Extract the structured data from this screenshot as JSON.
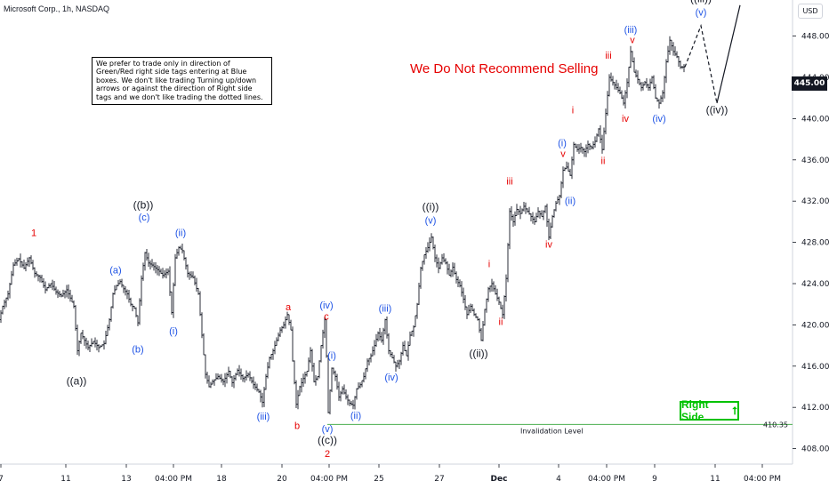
{
  "header": {
    "title": "Microsoft Corp., 1h, NASDAQ",
    "currency": "USD"
  },
  "note_text": "We prefer to trade only in direction of Green/Red right side tags entering at Blue boxes. We don't like trading Turning up/down arrows or against the direction of Right side tags and we don't like trading the dotted lines.",
  "warning_text": "We Do Not Recommend Selling",
  "right_side_label": "Right Side",
  "right_side_arrow": "⭡",
  "invalidation": {
    "label": "Invalidation Level",
    "value": "410.35"
  },
  "colors": {
    "red": "#e60000",
    "blue": "#1e53e5",
    "black": "#131722",
    "green": "#00c200",
    "invalidation": "#4caf50"
  },
  "chart_data": {
    "type": "ohlc",
    "current_price": "445.00",
    "ylim": [
      406.5,
      451.5
    ],
    "y_ticks": [
      408,
      412,
      416,
      420,
      424,
      428,
      432,
      436,
      440,
      444,
      448
    ],
    "y_tick_labels": [
      "408.00",
      "412.00",
      "416.00",
      "420.00",
      "424.00",
      "428.00",
      "432.00",
      "436.00",
      "440.00",
      "444.00",
      "448.00"
    ],
    "x_tick_labels": [
      "7",
      "11",
      "13",
      "04:00 PM",
      "18",
      "20",
      "04:00 PM",
      "25",
      "27",
      "Dec",
      "4",
      "04:00 PM",
      "9",
      "11",
      "04:00 PM"
    ],
    "price_path": [
      [
        0,
        420.5
      ],
      [
        4,
        421.8
      ],
      [
        10,
        423.0
      ],
      [
        16,
        425.8
      ],
      [
        22,
        426.4
      ],
      [
        28,
        425.5
      ],
      [
        34,
        426.5
      ],
      [
        40,
        425.0
      ],
      [
        46,
        424.6
      ],
      [
        52,
        423.4
      ],
      [
        58,
        424.0
      ],
      [
        64,
        423.2
      ],
      [
        70,
        422.8
      ],
      [
        76,
        423.4
      ],
      [
        80,
        422.6
      ],
      [
        84,
        421.8
      ],
      [
        88,
        417.5
      ],
      [
        92,
        419.2
      ],
      [
        96,
        418.5
      ],
      [
        100,
        417.8
      ],
      [
        106,
        418.4
      ],
      [
        112,
        417.8
      ],
      [
        118,
        418.2
      ],
      [
        124,
        420.5
      ],
      [
        128,
        423.0
      ],
      [
        132,
        423.8
      ],
      [
        136,
        424.2
      ],
      [
        140,
        423.5
      ],
      [
        144,
        423.0
      ],
      [
        148,
        422.0
      ],
      [
        152,
        421.6
      ],
      [
        156,
        420.2
      ],
      [
        160,
        424.5
      ],
      [
        164,
        427.0
      ],
      [
        168,
        426.0
      ],
      [
        172,
        425.8
      ],
      [
        176,
        425.5
      ],
      [
        180,
        425.2
      ],
      [
        184,
        424.8
      ],
      [
        190,
        425.2
      ],
      [
        194,
        421.2
      ],
      [
        198,
        426.5
      ],
      [
        202,
        427.5
      ],
      [
        206,
        427.2
      ],
      [
        212,
        425.0
      ],
      [
        218,
        424.6
      ],
      [
        224,
        423.0
      ],
      [
        228,
        419.0
      ],
      [
        232,
        415.2
      ],
      [
        236,
        414.0
      ],
      [
        240,
        414.5
      ],
      [
        246,
        415.0
      ],
      [
        252,
        414.5
      ],
      [
        258,
        415.5
      ],
      [
        262,
        414.4
      ],
      [
        268,
        415.6
      ],
      [
        274,
        414.8
      ],
      [
        280,
        415.2
      ],
      [
        286,
        414.2
      ],
      [
        292,
        413.5
      ],
      [
        296,
        412.5
      ],
      [
        300,
        415.0
      ],
      [
        304,
        416.8
      ],
      [
        308,
        417.5
      ],
      [
        312,
        418.5
      ],
      [
        316,
        419.5
      ],
      [
        320,
        420.0
      ],
      [
        324,
        421.0
      ],
      [
        328,
        419.5
      ],
      [
        330,
        416.5
      ],
      [
        334,
        412.3
      ],
      [
        338,
        414.0
      ],
      [
        342,
        414.8
      ],
      [
        346,
        415.5
      ],
      [
        350,
        417.5
      ],
      [
        354,
        414.5
      ],
      [
        358,
        415.0
      ],
      [
        362,
        418.0
      ],
      [
        366,
        420.5
      ],
      [
        368,
        417.0
      ],
      [
        370,
        411.5
      ],
      [
        374,
        415.8
      ],
      [
        378,
        415.0
      ],
      [
        382,
        413.0
      ],
      [
        386,
        413.8
      ],
      [
        390,
        413.0
      ],
      [
        394,
        412.4
      ],
      [
        398,
        412.2
      ],
      [
        402,
        413.8
      ],
      [
        406,
        414.2
      ],
      [
        410,
        415.0
      ],
      [
        414,
        416.5
      ],
      [
        418,
        417.0
      ],
      [
        422,
        418.0
      ],
      [
        426,
        419.2
      ],
      [
        430,
        418.5
      ],
      [
        434,
        420.5
      ],
      [
        438,
        417.5
      ],
      [
        442,
        416.8
      ],
      [
        446,
        416.0
      ],
      [
        450,
        416.5
      ],
      [
        454,
        418.0
      ],
      [
        458,
        417.0
      ],
      [
        462,
        419.0
      ],
      [
        466,
        419.8
      ],
      [
        470,
        422.0
      ],
      [
        474,
        425.5
      ],
      [
        478,
        426.8
      ],
      [
        482,
        427.5
      ],
      [
        486,
        428.5
      ],
      [
        490,
        426.5
      ],
      [
        494,
        425.5
      ],
      [
        498,
        426.5
      ],
      [
        502,
        426.0
      ],
      [
        506,
        424.8
      ],
      [
        510,
        425.6
      ],
      [
        514,
        424.4
      ],
      [
        518,
        423.8
      ],
      [
        522,
        422.5
      ],
      [
        526,
        421.0
      ],
      [
        530,
        421.8
      ],
      [
        534,
        421.0
      ],
      [
        538,
        420.5
      ],
      [
        542,
        418.5
      ],
      [
        546,
        421.5
      ],
      [
        550,
        423.5
      ],
      [
        554,
        424.0
      ],
      [
        558,
        423.0
      ],
      [
        562,
        422.2
      ],
      [
        566,
        421.0
      ],
      [
        570,
        424.5
      ],
      [
        574,
        431.0
      ],
      [
        578,
        430.0
      ],
      [
        582,
        431.2
      ],
      [
        586,
        430.8
      ],
      [
        590,
        431.5
      ],
      [
        594,
        431.0
      ],
      [
        598,
        430.5
      ],
      [
        602,
        430.0
      ],
      [
        606,
        431.0
      ],
      [
        610,
        430.5
      ],
      [
        614,
        431.5
      ],
      [
        618,
        428.5
      ],
      [
        622,
        430.5
      ],
      [
        626,
        431.8
      ],
      [
        630,
        432.5
      ],
      [
        634,
        435.0
      ],
      [
        638,
        435.3
      ],
      [
        642,
        434.5
      ],
      [
        646,
        437.5
      ],
      [
        650,
        437.0
      ],
      [
        654,
        437.2
      ],
      [
        658,
        436.8
      ],
      [
        662,
        437.5
      ],
      [
        666,
        437.2
      ],
      [
        670,
        437.8
      ],
      [
        674,
        439.0
      ],
      [
        678,
        437.0
      ],
      [
        682,
        440.5
      ],
      [
        686,
        444.0
      ],
      [
        690,
        443.5
      ],
      [
        694,
        443.0
      ],
      [
        698,
        442.5
      ],
      [
        702,
        441.5
      ],
      [
        706,
        443.5
      ],
      [
        710,
        446.5
      ],
      [
        714,
        444.5
      ],
      [
        718,
        443.8
      ],
      [
        722,
        443.0
      ],
      [
        726,
        443.5
      ],
      [
        730,
        443.0
      ],
      [
        734,
        444.0
      ],
      [
        738,
        442.0
      ],
      [
        742,
        441.5
      ],
      [
        746,
        442.5
      ],
      [
        750,
        445.5
      ],
      [
        754,
        447.6
      ],
      [
        758,
        446.5
      ],
      [
        762,
        446.0
      ],
      [
        766,
        445.0
      ],
      [
        770,
        445.0
      ]
    ],
    "projection": {
      "dotted": [
        [
          770,
          445.0
        ],
        [
          788,
          449.0
        ],
        [
          806,
          441.5
        ]
      ],
      "solid": [
        [
          806,
          441.5
        ],
        [
          832,
          451.0
        ]
      ]
    },
    "invalidation_level": 410.35,
    "annotations": [
      {
        "text": "1",
        "x": 38,
        "y": 428.6,
        "color": "red"
      },
      {
        "text": "((a))",
        "x": 86,
        "y": 414.2,
        "color": "black"
      },
      {
        "text": "(a)",
        "x": 130,
        "y": 425.0,
        "color": "blue"
      },
      {
        "text": "(b)",
        "x": 155,
        "y": 417.3,
        "color": "blue"
      },
      {
        "text": "((b))",
        "x": 161,
        "y": 431.3,
        "color": "black"
      },
      {
        "text": "(c)",
        "x": 162,
        "y": 430.1,
        "color": "blue"
      },
      {
        "text": "(ii)",
        "x": 203,
        "y": 428.6,
        "color": "blue"
      },
      {
        "text": "(i)",
        "x": 195,
        "y": 419.1,
        "color": "blue"
      },
      {
        "text": "(iii)",
        "x": 296,
        "y": 410.8,
        "color": "blue"
      },
      {
        "text": "a",
        "x": 324,
        "y": 421.4,
        "color": "red"
      },
      {
        "text": "b",
        "x": 334,
        "y": 409.9,
        "color": "red"
      },
      {
        "text": "(iv)",
        "x": 367,
        "y": 421.6,
        "color": "blue"
      },
      {
        "text": "c",
        "x": 367,
        "y": 420.5,
        "color": "red"
      },
      {
        "text": "(i)",
        "x": 373,
        "y": 416.7,
        "color": "blue"
      },
      {
        "text": "(v)",
        "x": 368,
        "y": 409.6,
        "color": "blue"
      },
      {
        "text": "((c))",
        "x": 368,
        "y": 408.5,
        "color": "black"
      },
      {
        "text": "2",
        "x": 368,
        "y": 407.2,
        "color": "red"
      },
      {
        "text": "(ii)",
        "x": 400,
        "y": 410.9,
        "color": "blue"
      },
      {
        "text": "(iii)",
        "x": 433,
        "y": 421.3,
        "color": "blue"
      },
      {
        "text": "(iv)",
        "x": 440,
        "y": 414.6,
        "color": "blue"
      },
      {
        "text": "((i))",
        "x": 484,
        "y": 431.1,
        "color": "black"
      },
      {
        "text": "(v)",
        "x": 484,
        "y": 429.8,
        "color": "blue"
      },
      {
        "text": "((ii))",
        "x": 538,
        "y": 416.9,
        "color": "black"
      },
      {
        "text": "i",
        "x": 550,
        "y": 425.6,
        "color": "red"
      },
      {
        "text": "ii",
        "x": 563,
        "y": 420.0,
        "color": "red"
      },
      {
        "text": "iii",
        "x": 573,
        "y": 433.6,
        "color": "red"
      },
      {
        "text": "iv",
        "x": 617,
        "y": 427.5,
        "color": "red"
      },
      {
        "text": "(i)",
        "x": 632,
        "y": 437.3,
        "color": "blue"
      },
      {
        "text": "v",
        "x": 633,
        "y": 436.3,
        "color": "red"
      },
      {
        "text": "(ii)",
        "x": 641,
        "y": 431.7,
        "color": "blue"
      },
      {
        "text": "i",
        "x": 644,
        "y": 440.5,
        "color": "red"
      },
      {
        "text": "ii",
        "x": 678,
        "y": 435.6,
        "color": "red"
      },
      {
        "text": "iii",
        "x": 684,
        "y": 445.8,
        "color": "red"
      },
      {
        "text": "iv",
        "x": 703,
        "y": 439.7,
        "color": "red"
      },
      {
        "text": "(iii)",
        "x": 709,
        "y": 448.3,
        "color": "blue"
      },
      {
        "text": "v",
        "x": 711,
        "y": 447.3,
        "color": "red"
      },
      {
        "text": "(iv)",
        "x": 741,
        "y": 439.7,
        "color": "blue"
      },
      {
        "text": "((iii))",
        "x": 788,
        "y": 451.3,
        "color": "black"
      },
      {
        "text": "(v)",
        "x": 788,
        "y": 450.0,
        "color": "blue"
      },
      {
        "text": "((iv))",
        "x": 806,
        "y": 440.5,
        "color": "black"
      }
    ]
  }
}
